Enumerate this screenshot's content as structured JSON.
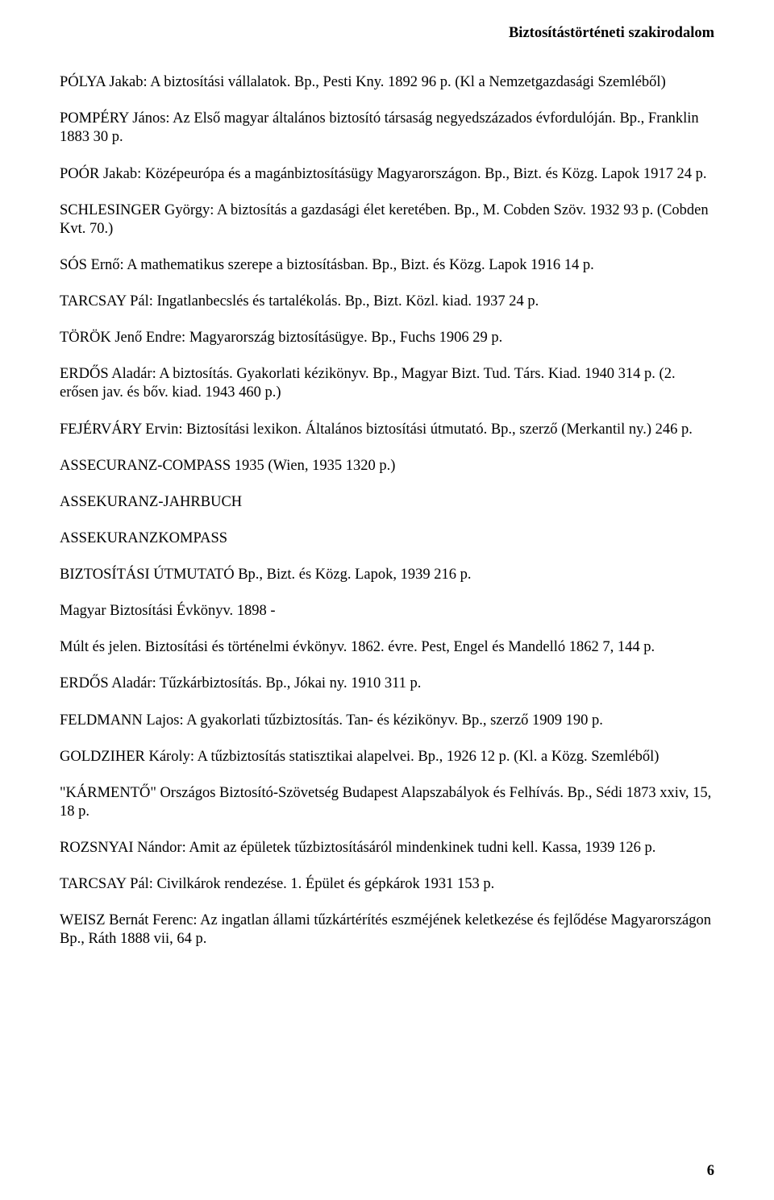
{
  "header": "Biztosítástörténeti szakirodalom",
  "entries": [
    "PÓLYA Jakab: A biztosítási vállalatok. Bp., Pesti Kny. 1892 96 p. (Kl a Nemzetgazdasági Szemléből)",
    "POMPÉRY János: Az Első magyar általános biztosító társaság negyedszázados évfordulóján. Bp., Franklin 1883 30 p.",
    "POÓR Jakab: Középeurópa és a magánbiztosításügy Magyarországon. Bp., Bizt. és Közg. Lapok 1917 24 p.",
    "SCHLESINGER György: A biztosítás a gazdasági élet keretében. Bp., M. Cobden Szöv. 1932 93 p. (Cobden Kvt. 70.)",
    "SÓS Ernő: A mathematikus szerepe a biztosításban. Bp., Bizt. és Közg. Lapok 1916 14 p.",
    "TARCSAY Pál: Ingatlanbecslés és tartalékolás. Bp., Bizt. Közl. kiad. 1937 24 p.",
    "TÖRÖK Jenő Endre: Magyarország biztosításügye. Bp., Fuchs 1906 29 p.",
    "ERDŐS Aladár: A biztosítás. Gyakorlati kézikönyv. Bp., Magyar Bizt. Tud. Társ. Kiad. 1940 314 p. (2. erősen jav. és bőv. kiad. 1943 460 p.)",
    "FEJÉRVÁRY Ervin: Biztosítási lexikon. Általános biztosítási útmutató. Bp., szerző (Merkantil ny.) 246 p.",
    "ASSECURANZ-COMPASS 1935 (Wien, 1935 1320 p.)",
    "ASSEKURANZ-JAHRBUCH",
    "ASSEKURANZKOMPASS",
    "BIZTOSÍTÁSI ÚTMUTATÓ Bp., Bizt. és Közg. Lapok, 1939 216 p.",
    "Magyar Biztosítási Évkönyv. 1898 -",
    "Múlt és jelen. Biztosítási és történelmi évkönyv. 1862. évre. Pest, Engel és Mandelló 1862 7, 144 p.",
    "ERDŐS Aladár: Tűzkárbiztosítás. Bp., Jókai ny. 1910 311 p.",
    "FELDMANN Lajos: A gyakorlati tűzbiztosítás. Tan- és kézikönyv. Bp., szerző 1909 190 p.",
    "GOLDZIHER Károly: A tűzbiztosítás statisztikai alapelvei. Bp., 1926 12 p. (Kl. a Közg. Szemléből)",
    "\"KÁRMENTŐ\" Országos Biztosító-Szövetség Budapest Alapszabályok és Felhívás. Bp., Sédi 1873 xxiv, 15, 18 p.",
    "ROZSNYAI Nándor: Amit az épületek tűzbiztosításáról mindenkinek tudni kell. Kassa, 1939 126 p.",
    "TARCSAY Pál: Civilkárok rendezése. 1. Épület és gépkárok 1931 153 p.",
    "WEISZ Bernát Ferenc: Az ingatlan állami tűzkártérítés eszméjének keletkezése és fejlődése Magyarországon Bp., Ráth 1888 vii, 64 p."
  ],
  "page_number": "6"
}
